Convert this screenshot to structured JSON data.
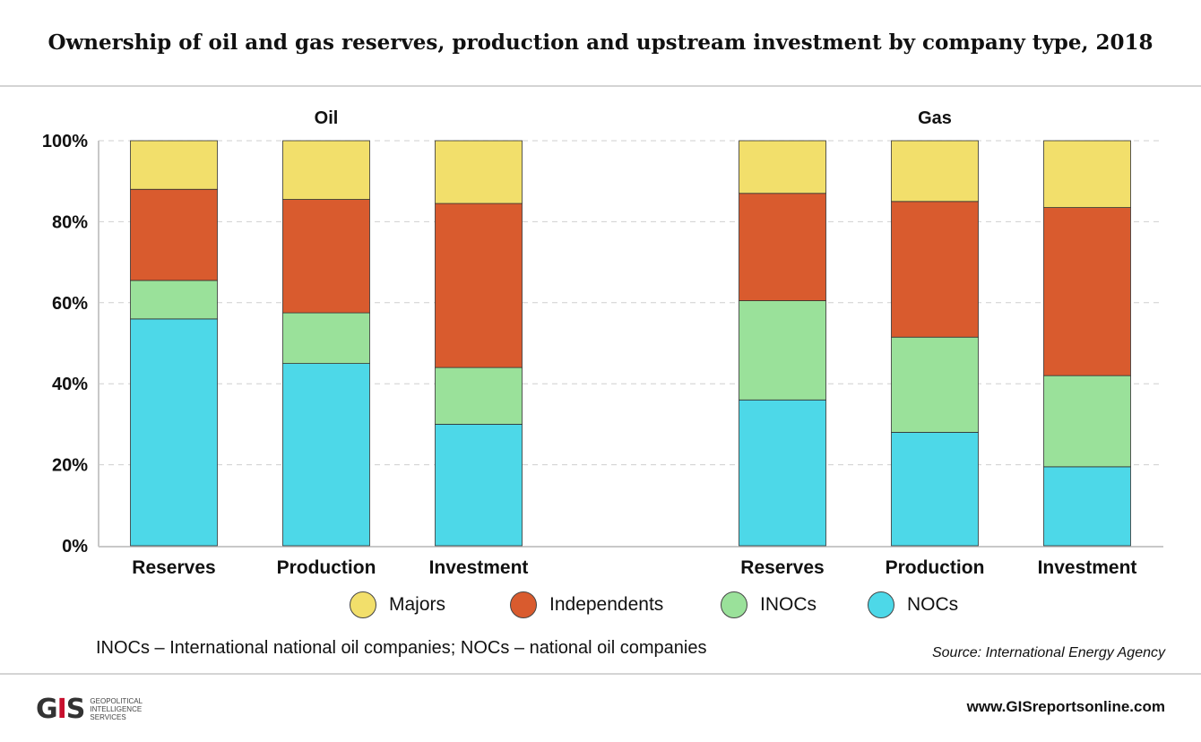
{
  "title": "Ownership of oil and gas reserves, production and upstream investment by company type, 2018",
  "chart_data": {
    "type": "bar",
    "stacked": true,
    "ylim": [
      0,
      100
    ],
    "yticks": [
      "0%",
      "20%",
      "40%",
      "60%",
      "80%",
      "100%"
    ],
    "grid": true,
    "legend_position": "bottom",
    "series_colors": {
      "Majors": "#f2df6b",
      "Independents": "#d95b2e",
      "INOCs": "#9ae19a",
      "NOCs": "#4dd8e8"
    },
    "panels": [
      {
        "label": "Oil",
        "categories": [
          "Reserves",
          "Production",
          "Investment"
        ],
        "series": [
          {
            "name": "NOCs",
            "values": [
              56,
              45,
              30
            ]
          },
          {
            "name": "INOCs",
            "values": [
              9.5,
              12.5,
              14
            ]
          },
          {
            "name": "Independents",
            "values": [
              22.5,
              28,
              40.5
            ]
          },
          {
            "name": "Majors",
            "values": [
              12,
              14.5,
              15.5
            ]
          }
        ]
      },
      {
        "label": "Gas",
        "categories": [
          "Reserves",
          "Production",
          "Investment"
        ],
        "series": [
          {
            "name": "NOCs",
            "values": [
              36,
              28,
              19.5
            ]
          },
          {
            "name": "INOCs",
            "values": [
              24.5,
              23.5,
              22.5
            ]
          },
          {
            "name": "Independents",
            "values": [
              26.5,
              33.5,
              41.5
            ]
          },
          {
            "name": "Majors",
            "values": [
              13,
              15,
              16.5
            ]
          }
        ]
      }
    ]
  },
  "legend": [
    {
      "label": "Majors",
      "color": "#f2df6b"
    },
    {
      "label": "Independents",
      "color": "#d95b2e"
    },
    {
      "label": "INOCs",
      "color": "#9ae19a"
    },
    {
      "label": "NOCs",
      "color": "#4dd8e8"
    }
  ],
  "note": "INOCs – International national oil companies; NOCs – national oil companies",
  "source": "Source: International Energy Agency",
  "footer": {
    "logo_mark": "GIS",
    "logo_text": [
      "GEOPOLITICAL",
      "INTELLIGENCE",
      "SERVICES"
    ],
    "website": "www.GISreportsonline.com"
  }
}
